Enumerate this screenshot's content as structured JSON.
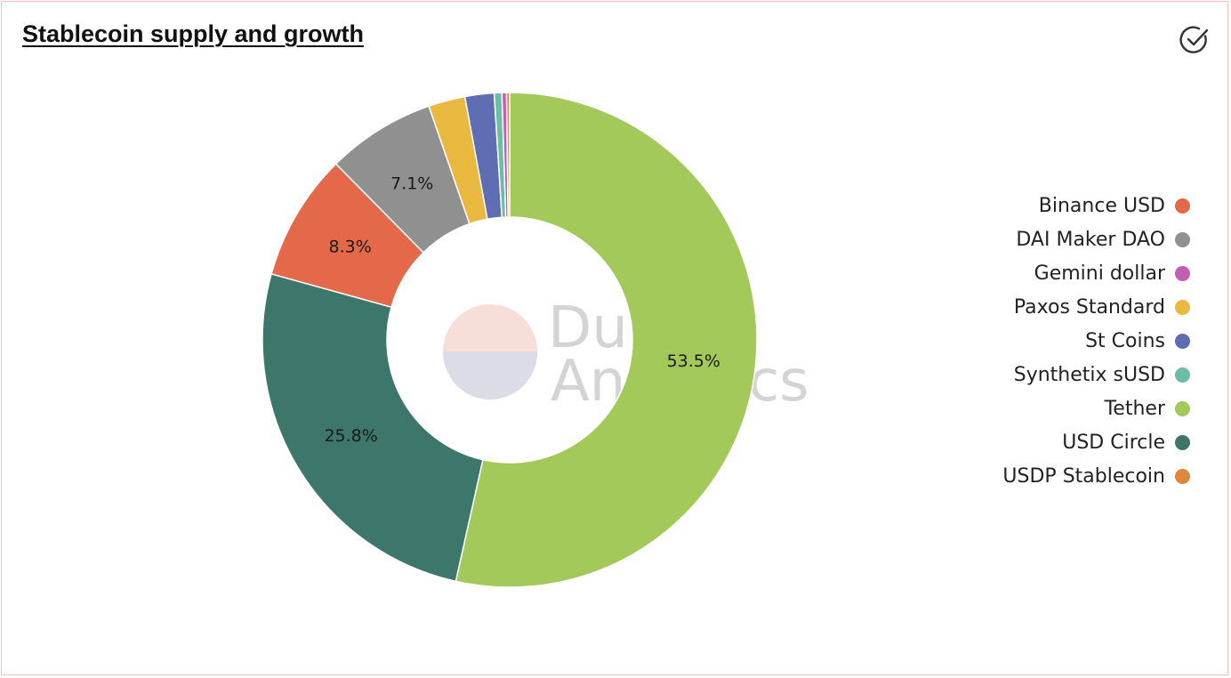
{
  "title": "Stablecoin supply and growth",
  "icons": {
    "status": "check-circle-icon"
  },
  "watermark": {
    "line1": "Dune",
    "line2": "Analytics"
  },
  "chart_data": {
    "type": "pie",
    "donut": true,
    "title": "Stablecoin supply and growth",
    "slices": [
      {
        "name": "Tether",
        "value": 53.5,
        "label": "53.5%",
        "color": "#a3c95b"
      },
      {
        "name": "USD Circle",
        "value": 25.8,
        "label": "25.8%",
        "color": "#3d776b"
      },
      {
        "name": "Binance USD",
        "value": 8.3,
        "label": "8.3%",
        "color": "#e4694b"
      },
      {
        "name": "DAI Maker DAO",
        "value": 7.1,
        "label": "7.1%",
        "color": "#909090"
      },
      {
        "name": "Paxos Standard",
        "value": 2.4,
        "label": "",
        "color": "#e9b93f"
      },
      {
        "name": "St Coins",
        "value": 1.9,
        "label": "",
        "color": "#5f6db3"
      },
      {
        "name": "Synthetix sUSD",
        "value": 0.5,
        "label": "",
        "color": "#6cbda7"
      },
      {
        "name": "Gemini dollar",
        "value": 0.3,
        "label": "",
        "color": "#c35fb0"
      },
      {
        "name": "USDP Stablecoin",
        "value": 0.2,
        "label": "",
        "color": "#e0883a"
      }
    ],
    "legend": [
      {
        "name": "Binance USD",
        "color": "#e4694b"
      },
      {
        "name": "DAI Maker DAO",
        "color": "#909090"
      },
      {
        "name": "Gemini dollar",
        "color": "#c35fb0"
      },
      {
        "name": "Paxos Standard",
        "color": "#e9b93f"
      },
      {
        "name": "St Coins",
        "color": "#5f6db3"
      },
      {
        "name": "Synthetix sUSD",
        "color": "#6cbda7"
      },
      {
        "name": "Tether",
        "color": "#a3c95b"
      },
      {
        "name": "USD Circle",
        "color": "#3d776b"
      },
      {
        "name": "USDP Stablecoin",
        "color": "#e0883a"
      }
    ],
    "legend_position": "right"
  }
}
